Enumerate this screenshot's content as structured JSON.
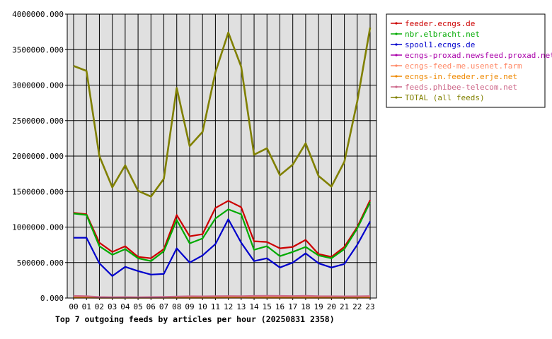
{
  "chart_data": {
    "type": "line",
    "title": "Top 7 outgoing feeds by articles per hour (20250831 2358)",
    "xlabel": "",
    "ylabel": "",
    "categories": [
      "00",
      "01",
      "02",
      "03",
      "04",
      "05",
      "06",
      "07",
      "08",
      "09",
      "10",
      "11",
      "12",
      "13",
      "14",
      "15",
      "16",
      "17",
      "18",
      "19",
      "20",
      "21",
      "22",
      "23"
    ],
    "ylim": [
      0,
      4000000
    ],
    "yticks": [
      "0.000",
      "500000.000",
      "1000000.000",
      "1500000.000",
      "2000000.000",
      "2500000.000",
      "3000000.000",
      "3500000.000",
      "4000000.000"
    ],
    "grid": true,
    "legend_position": "right",
    "background_color": "#e0e0e0",
    "series": [
      {
        "name": "feeder.ecngs.de",
        "color": "#cc0000",
        "values": [
          1200000,
          1180000,
          780000,
          650000,
          730000,
          580000,
          560000,
          690000,
          1170000,
          870000,
          900000,
          1270000,
          1370000,
          1280000,
          800000,
          790000,
          700000,
          720000,
          820000,
          620000,
          580000,
          720000,
          1000000,
          1380000
        ]
      },
      {
        "name": "nbr.elbracht.net",
        "color": "#00aa00",
        "values": [
          1190000,
          1170000,
          730000,
          610000,
          690000,
          560000,
          520000,
          660000,
          1100000,
          770000,
          840000,
          1120000,
          1250000,
          1180000,
          680000,
          730000,
          590000,
          650000,
          720000,
          600000,
          560000,
          690000,
          980000,
          1350000
        ]
      },
      {
        "name": "spool1.ecngs.de",
        "color": "#0000cc",
        "values": [
          850000,
          850000,
          490000,
          310000,
          440000,
          380000,
          330000,
          340000,
          700000,
          500000,
          600000,
          760000,
          1110000,
          780000,
          520000,
          560000,
          430000,
          500000,
          630000,
          490000,
          430000,
          480000,
          750000,
          1080000
        ]
      },
      {
        "name": "ecngs-proxad.newsfeed.proxad.net",
        "color": "#aa00aa",
        "values": [
          15000,
          14000,
          9000,
          8000,
          9000,
          7000,
          8000,
          9000,
          14000,
          11000,
          10000,
          13000,
          15000,
          14000,
          16000,
          17000,
          15000,
          14000,
          15000,
          13000,
          12000,
          12000,
          13000,
          15000
        ]
      },
      {
        "name": "ecngs-feed-me.usenet.farm",
        "color": "#ff8866",
        "values": [
          25000,
          22000,
          12000,
          10000,
          11000,
          9000,
          10000,
          12000,
          18000,
          14000,
          13000,
          17000,
          19000,
          18000,
          20000,
          21000,
          19000,
          18000,
          20000,
          17000,
          16000,
          16000,
          17000,
          19000
        ]
      },
      {
        "name": "ecngs-in.feeder.erje.net",
        "color": "#ee8800",
        "values": [
          5000,
          5000,
          3000,
          3000,
          3000,
          3000,
          3000,
          3000,
          4000,
          4000,
          4000,
          4000,
          5000,
          5000,
          4000,
          4000,
          4000,
          4000,
          4000,
          4000,
          4000,
          4000,
          4000,
          5000
        ]
      },
      {
        "name": "feeds.phibee-telecom.net",
        "color": "#cc6688",
        "values": [
          30000,
          26000,
          15000,
          12000,
          14000,
          11000,
          14000,
          16000,
          22000,
          25000,
          24000,
          26000,
          28000,
          26000,
          30000,
          32000,
          30000,
          28000,
          32000,
          26000,
          25000,
          24000,
          25000,
          28000
        ]
      },
      {
        "name": "TOTAL (all feeds)",
        "color": "#808000",
        "values": [
          3270000,
          3200000,
          2000000,
          1560000,
          1870000,
          1510000,
          1430000,
          1680000,
          2960000,
          2140000,
          2340000,
          3180000,
          3740000,
          3260000,
          2020000,
          2110000,
          1730000,
          1880000,
          2180000,
          1720000,
          1570000,
          1920000,
          2770000,
          3810000
        ]
      }
    ]
  }
}
